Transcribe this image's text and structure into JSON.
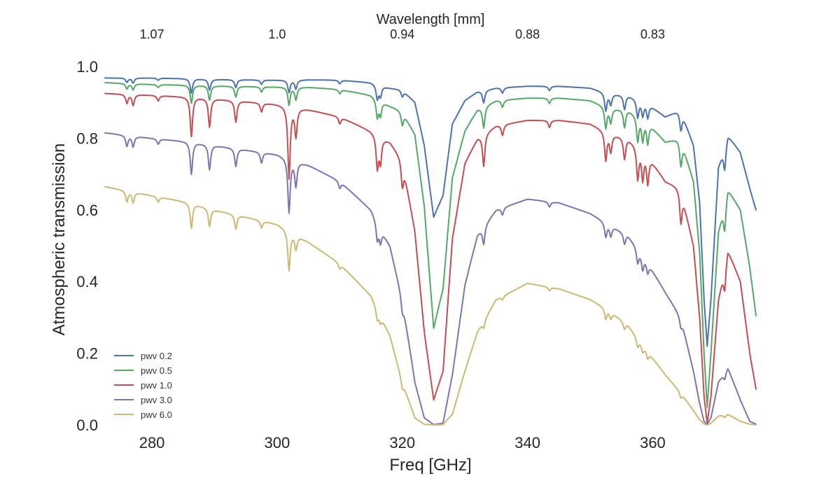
{
  "chart_data": {
    "type": "line",
    "title": "",
    "xlabel": "Freq [GHz]",
    "ylabel": "Atmospheric transmission",
    "top_xlabel": "Wavelength [mm]",
    "xlim": [
      272.5,
      376.5
    ],
    "ylim": [
      0.0,
      1.0
    ],
    "x_ticks": [
      280,
      300,
      320,
      340,
      360
    ],
    "x_tick_labels": [
      "280",
      "300",
      "320",
      "340",
      "360"
    ],
    "y_ticks": [
      0.0,
      0.2,
      0.4,
      0.6,
      0.8,
      1.0
    ],
    "y_tick_labels": [
      "0.0",
      "0.2",
      "0.4",
      "0.6",
      "0.8",
      "1.0"
    ],
    "top_ticks": [
      280,
      300,
      320,
      340,
      360
    ],
    "top_tick_labels": [
      "1.07",
      "1.0",
      "0.94",
      "0.88",
      "0.83"
    ],
    "grid": false,
    "legend_position": "bottom-left",
    "series": [
      {
        "name": "pwv 0.2",
        "color": "#4c72b0",
        "x": [
          272.5,
          280,
          286,
          290,
          300,
          305,
          310,
          315,
          318,
          320,
          322,
          323.5,
          325,
          326.5,
          328,
          330,
          332,
          335,
          340,
          345,
          350,
          353,
          356,
          359,
          362,
          364.5,
          366.5,
          367.5,
          368.2,
          368.7,
          369.3,
          370.5,
          372,
          374,
          375.5,
          376.5
        ],
        "y": [
          0.968,
          0.968,
          0.966,
          0.964,
          0.962,
          0.963,
          0.962,
          0.955,
          0.94,
          0.935,
          0.9,
          0.78,
          0.58,
          0.64,
          0.84,
          0.905,
          0.93,
          0.94,
          0.945,
          0.945,
          0.94,
          0.925,
          0.92,
          0.9,
          0.86,
          0.88,
          0.78,
          0.62,
          0.35,
          0.22,
          0.35,
          0.72,
          0.81,
          0.76,
          0.66,
          0.6
        ],
        "dips": [
          [
            276,
            0.012
          ],
          [
            277,
            0.014
          ],
          [
            281,
            0.006
          ],
          [
            286.3,
            0.04
          ],
          [
            289.2,
            0.03
          ],
          [
            293.4,
            0.022
          ],
          [
            297.5,
            0.012
          ],
          [
            301.9,
            0.035
          ],
          [
            303,
            0.025
          ],
          [
            310,
            0.01
          ],
          [
            316,
            0.04
          ],
          [
            316.5,
            0.03
          ],
          [
            320,
            0.02
          ],
          [
            333,
            0.035
          ],
          [
            336,
            0.015
          ],
          [
            343.5,
            0.012
          ],
          [
            352.5,
            0.05
          ],
          [
            353.3,
            0.03
          ],
          [
            355.5,
            0.04
          ],
          [
            357.6,
            0.05
          ],
          [
            358.4,
            0.04
          ],
          [
            359.2,
            0.04
          ],
          [
            364.5,
            0.06
          ],
          [
            371.5,
            0.07
          ]
        ]
      },
      {
        "name": "pwv 0.5",
        "color": "#55a868",
        "x": [
          272.5,
          280,
          286,
          290,
          300,
          305,
          310,
          315,
          318,
          320,
          322,
          323.5,
          325,
          326.5,
          328,
          330,
          332,
          335,
          340,
          345,
          350,
          353,
          356,
          359,
          362,
          364.5,
          366.5,
          367.5,
          368.2,
          368.7,
          369.3,
          370.5,
          372,
          374,
          375.5,
          376.5
        ],
        "y": [
          0.955,
          0.95,
          0.948,
          0.946,
          0.943,
          0.942,
          0.936,
          0.92,
          0.89,
          0.875,
          0.81,
          0.61,
          0.27,
          0.38,
          0.69,
          0.82,
          0.88,
          0.905,
          0.912,
          0.912,
          0.905,
          0.885,
          0.88,
          0.85,
          0.79,
          0.8,
          0.68,
          0.48,
          0.2,
          0.05,
          0.2,
          0.54,
          0.66,
          0.6,
          0.44,
          0.305
        ],
        "dips": [
          [
            276,
            0.015
          ],
          [
            277,
            0.017
          ],
          [
            281,
            0.008
          ],
          [
            286.3,
            0.05
          ],
          [
            289.2,
            0.04
          ],
          [
            293.4,
            0.03
          ],
          [
            297.5,
            0.015
          ],
          [
            301.9,
            0.05
          ],
          [
            303,
            0.035
          ],
          [
            310,
            0.012
          ],
          [
            316,
            0.05
          ],
          [
            316.5,
            0.04
          ],
          [
            320,
            0.04
          ],
          [
            333,
            0.06
          ],
          [
            336,
            0.02
          ],
          [
            343.5,
            0.015
          ],
          [
            352.5,
            0.06
          ],
          [
            353.3,
            0.04
          ],
          [
            355.5,
            0.05
          ],
          [
            357.6,
            0.07
          ],
          [
            358.4,
            0.06
          ],
          [
            359.2,
            0.06
          ],
          [
            364.5,
            0.08
          ],
          [
            371.5,
            0.08
          ]
        ]
      },
      {
        "name": "pwv 1.0",
        "color": "#c44e52",
        "x": [
          272.5,
          280,
          286,
          290,
          300,
          305,
          310,
          315,
          318,
          320,
          322,
          323.5,
          325,
          326.5,
          328,
          330,
          332,
          335,
          340,
          345,
          350,
          353,
          356,
          359,
          362,
          364.5,
          366.5,
          367.5,
          368.2,
          368.7,
          369.3,
          370.5,
          372,
          374,
          375.5,
          376.5
        ],
        "y": [
          0.925,
          0.92,
          0.915,
          0.91,
          0.895,
          0.88,
          0.86,
          0.82,
          0.79,
          0.74,
          0.54,
          0.26,
          0.07,
          0.15,
          0.52,
          0.73,
          0.8,
          0.835,
          0.85,
          0.85,
          0.84,
          0.815,
          0.8,
          0.76,
          0.68,
          0.66,
          0.5,
          0.3,
          0.08,
          0.005,
          0.08,
          0.35,
          0.49,
          0.4,
          0.2,
          0.1
        ],
        "dips": [
          [
            276,
            0.025
          ],
          [
            277,
            0.03
          ],
          [
            281,
            0.015
          ],
          [
            286.3,
            0.11
          ],
          [
            289.2,
            0.08
          ],
          [
            293.4,
            0.06
          ],
          [
            297.5,
            0.025
          ],
          [
            301.9,
            0.2
          ],
          [
            303,
            0.08
          ],
          [
            310,
            0.02
          ],
          [
            316,
            0.09
          ],
          [
            316.5,
            0.07
          ],
          [
            320,
            0.08
          ],
          [
            333,
            0.09
          ],
          [
            336,
            0.03
          ],
          [
            343.5,
            0.02
          ],
          [
            352.5,
            0.08
          ],
          [
            353.3,
            0.05
          ],
          [
            355.5,
            0.06
          ],
          [
            357.6,
            0.09
          ],
          [
            358.4,
            0.08
          ],
          [
            359.2,
            0.08
          ],
          [
            364.5,
            0.1
          ],
          [
            371.5,
            0.07
          ]
        ]
      },
      {
        "name": "pwv 3.0",
        "color": "#8172b2",
        "x": [
          272.5,
          280,
          286,
          290,
          300,
          305,
          310,
          315,
          318,
          320,
          322,
          323.5,
          325,
          326.5,
          328,
          330,
          332,
          335,
          340,
          345,
          350,
          353,
          356,
          359,
          362,
          364.5,
          366.5,
          367.5,
          368.2,
          368.7,
          369.3,
          370.5,
          372,
          374,
          375.5,
          376.5
        ],
        "y": [
          0.815,
          0.8,
          0.79,
          0.78,
          0.755,
          0.725,
          0.68,
          0.6,
          0.5,
          0.35,
          0.12,
          0.02,
          0.001,
          0.005,
          0.14,
          0.39,
          0.53,
          0.6,
          0.63,
          0.62,
          0.59,
          0.56,
          0.53,
          0.46,
          0.37,
          0.3,
          0.15,
          0.06,
          0.01,
          0.001,
          0.02,
          0.12,
          0.16,
          0.07,
          0.01,
          0.002
        ],
        "dips": [
          [
            276,
            0.03
          ],
          [
            277,
            0.03
          ],
          [
            281,
            0.015
          ],
          [
            286.3,
            0.09
          ],
          [
            289.2,
            0.07
          ],
          [
            293.4,
            0.05
          ],
          [
            297.5,
            0.03
          ],
          [
            301.9,
            0.15
          ],
          [
            303,
            0.07
          ],
          [
            310,
            0.02
          ],
          [
            316,
            0.05
          ],
          [
            316.5,
            0.04
          ],
          [
            320,
            0.04
          ],
          [
            333,
            0.05
          ],
          [
            336,
            0.02
          ],
          [
            343.5,
            0.015
          ],
          [
            352.5,
            0.04
          ],
          [
            353.3,
            0.03
          ],
          [
            355.5,
            0.03
          ],
          [
            357.6,
            0.04
          ],
          [
            358.4,
            0.04
          ],
          [
            359.2,
            0.03
          ],
          [
            364.5,
            0.03
          ],
          [
            371.5,
            0.02
          ]
        ]
      },
      {
        "name": "pwv 6.0",
        "color": "#ccb974",
        "x": [
          272.5,
          280,
          286,
          290,
          300,
          305,
          310,
          315,
          318,
          320,
          322,
          323.5,
          325,
          326.5,
          328,
          330,
          332,
          335,
          340,
          345,
          350,
          353,
          356,
          359,
          362,
          364.5,
          366.5,
          367.5,
          368.2,
          368.7,
          369.3,
          370.5,
          372,
          374,
          375.5,
          376.5
        ],
        "y": [
          0.665,
          0.64,
          0.62,
          0.6,
          0.56,
          0.51,
          0.45,
          0.36,
          0.25,
          0.12,
          0.02,
          0.002,
          0.0,
          0.001,
          0.03,
          0.15,
          0.26,
          0.35,
          0.395,
          0.38,
          0.35,
          0.32,
          0.28,
          0.21,
          0.14,
          0.09,
          0.04,
          0.015,
          0.003,
          0.0,
          0.005,
          0.025,
          0.03,
          0.01,
          0.002,
          0.0
        ],
        "dips": [
          [
            276,
            0.03
          ],
          [
            277,
            0.03
          ],
          [
            281,
            0.015
          ],
          [
            286.3,
            0.07
          ],
          [
            289.2,
            0.05
          ],
          [
            293.4,
            0.04
          ],
          [
            297.5,
            0.02
          ],
          [
            301.9,
            0.11
          ],
          [
            303,
            0.04
          ],
          [
            310,
            0.015
          ],
          [
            316,
            0.03
          ],
          [
            316.5,
            0.02
          ],
          [
            320,
            0.02
          ],
          [
            333,
            0.02
          ],
          [
            336,
            0.01
          ],
          [
            343.5,
            0.01
          ],
          [
            352.5,
            0.03
          ],
          [
            353.3,
            0.02
          ],
          [
            355.5,
            0.02
          ],
          [
            357.6,
            0.025
          ],
          [
            358.4,
            0.02
          ],
          [
            359.2,
            0.02
          ],
          [
            364.5,
            0.015
          ],
          [
            371.5,
            0.008
          ]
        ]
      }
    ]
  }
}
